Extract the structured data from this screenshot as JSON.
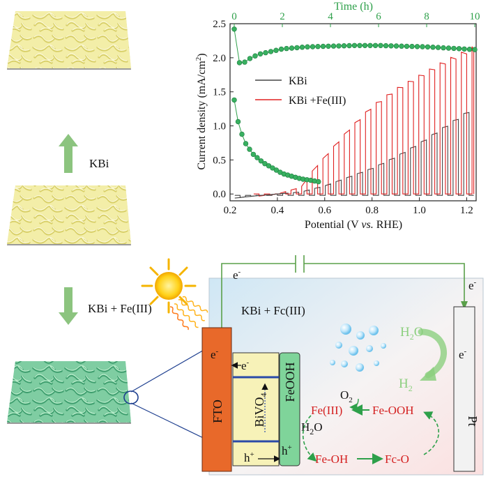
{
  "colors": {
    "yellow_film": "#efe89a",
    "green_film": "#6fc499",
    "arrow": "#8cc47f",
    "green": "#2ea04a",
    "red": "#e02020",
    "gray": "#444444",
    "fto": "#e8692a",
    "bivo4": "#f7f2b8",
    "feooh": "#7fd49a",
    "pt": "#f2f2f2"
  },
  "left_panel": {
    "arrow_top_label": "KBi",
    "arrow_bottom_label": "KBi + Fe(III)"
  },
  "cell": {
    "electrolyte_label": "KBi + Fc(III)",
    "fto_label": "FTO",
    "bivo4_label": "BiVO",
    "bivo4_sub": "4",
    "feooh_label": "FeOOH",
    "pt_label": "Pt",
    "electron_label": "e",
    "electron_sup": "-",
    "hole_label": "h",
    "hole_sup": "+",
    "o2_label": "O",
    "o2_sub": "2",
    "h2o_label": "H",
    "h2o_sub": "2",
    "h2o_tail": "O",
    "h2_label": "H",
    "h2_sub": "2",
    "cycle": {
      "fe3": "Fe(III)",
      "feooh_cycle": "Fe-OOH",
      "feoh": "Fe-OH",
      "feo": "Fc-O"
    }
  },
  "chart_data": {
    "type": "line",
    "xlabel_pre": "Potential (V ",
    "xlabel_vs": "vs.",
    "xlabel_post": " RHE)",
    "ylabel": "Current density (mA/cm",
    "ylabel_sup": "2",
    "ylabel_close": ")",
    "top_xlabel": "Time (h)",
    "xlim": [
      0.2,
      1.24
    ],
    "ylim": [
      -0.1,
      2.5
    ],
    "top_xlim": [
      0,
      10
    ],
    "x_ticks": [
      "0.2",
      "0.4",
      "0.6",
      "0.8",
      "1.0",
      "1.2"
    ],
    "y_ticks": [
      "0.0",
      "0.5",
      "1.0",
      "1.5",
      "2.0",
      "2.5"
    ],
    "top_ticks": [
      "0",
      "2",
      "4",
      "6",
      "8",
      "10"
    ],
    "legend": [
      "KBi",
      "KBi +Fe(III)"
    ],
    "series": [
      {
        "name": "KBi",
        "color": "#444444",
        "dark_onset": 0.22,
        "light": [
          [
            0.22,
            -0.06
          ],
          [
            0.3,
            -0.03
          ],
          [
            0.4,
            0.0
          ],
          [
            0.5,
            0.03
          ],
          [
            0.6,
            0.12
          ],
          [
            0.7,
            0.25
          ],
          [
            0.8,
            0.38
          ],
          [
            0.9,
            0.55
          ],
          [
            1.0,
            0.75
          ],
          [
            1.1,
            0.98
          ],
          [
            1.23,
            1.28
          ]
        ],
        "dark": -0.02,
        "chop_period": 0.045
      },
      {
        "name": "KBi +Fe(III)",
        "color": "#e02020",
        "light": [
          [
            0.3,
            -0.04
          ],
          [
            0.4,
            0.0
          ],
          [
            0.5,
            0.1
          ],
          [
            0.55,
            0.35
          ],
          [
            0.6,
            0.55
          ],
          [
            0.7,
            0.95
          ],
          [
            0.8,
            1.3
          ],
          [
            0.9,
            1.55
          ],
          [
            1.0,
            1.75
          ],
          [
            1.1,
            1.95
          ],
          [
            1.2,
            2.12
          ],
          [
            1.23,
            2.18
          ]
        ],
        "dark": 0.0,
        "chop_period": 0.045
      }
    ],
    "stability": {
      "name": "time",
      "color": "#2ea04a",
      "upper": [
        [
          0.0,
          2.42
        ],
        [
          0.15,
          1.95
        ],
        [
          0.3,
          1.9
        ],
        [
          0.6,
          1.98
        ],
        [
          1,
          2.05
        ],
        [
          2,
          2.13
        ],
        [
          3,
          2.16
        ],
        [
          4,
          2.17
        ],
        [
          5,
          2.18
        ],
        [
          6,
          2.18
        ],
        [
          7,
          2.17
        ],
        [
          8,
          2.16
        ],
        [
          9,
          2.14
        ],
        [
          10,
          2.12
        ]
      ],
      "lower": [
        [
          0.0,
          1.38
        ],
        [
          0.2,
          0.98
        ],
        [
          0.5,
          0.72
        ],
        [
          0.8,
          0.58
        ],
        [
          1.2,
          0.46
        ],
        [
          1.6,
          0.38
        ],
        [
          2.0,
          0.3
        ],
        [
          2.4,
          0.26
        ],
        [
          2.8,
          0.22
        ],
        [
          3.2,
          0.2
        ],
        [
          3.5,
          0.18
        ]
      ]
    }
  }
}
